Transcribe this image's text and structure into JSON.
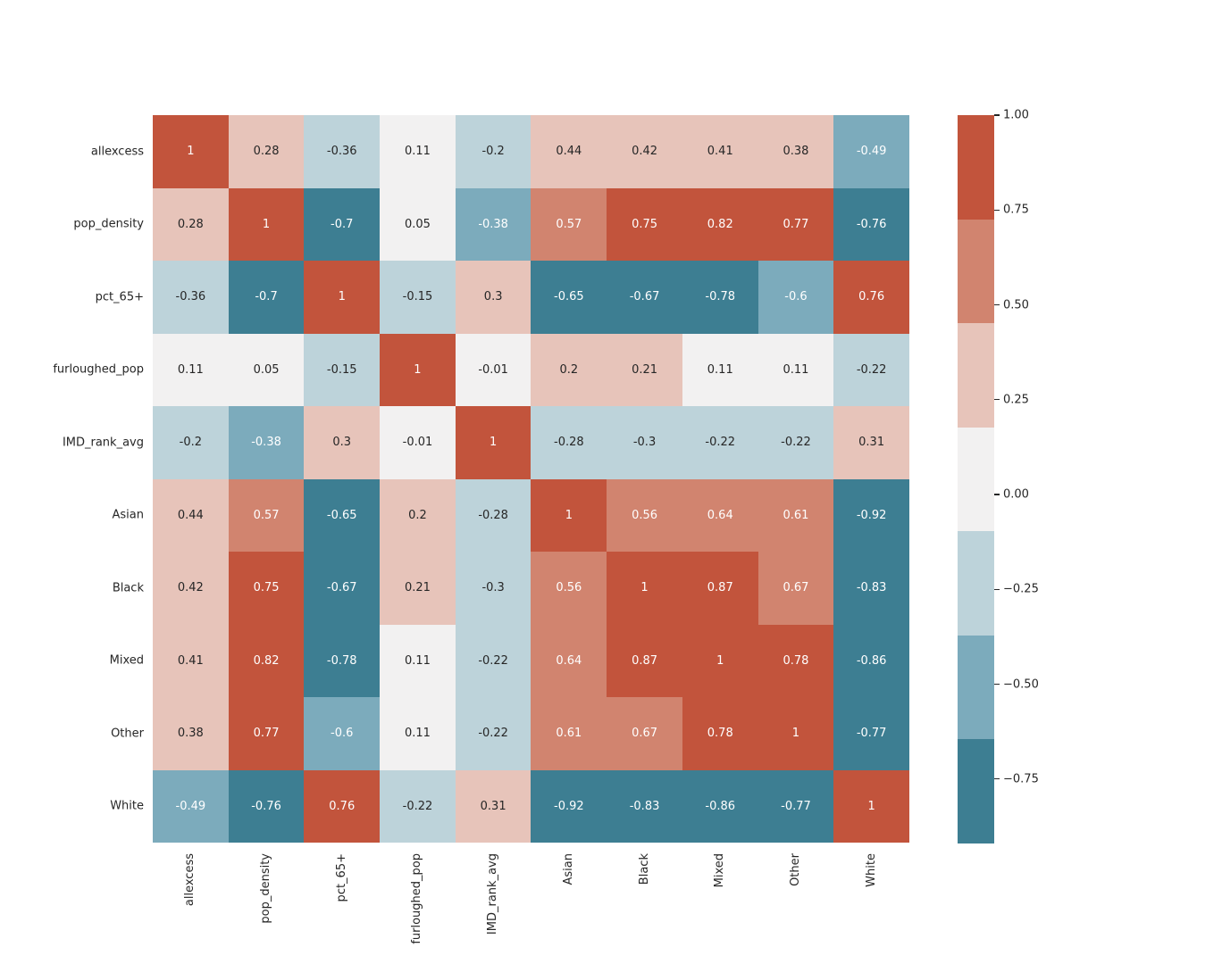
{
  "chart_data": {
    "type": "heatmap",
    "title": "",
    "xlabel": "",
    "ylabel": "",
    "categories": [
      "allexcess",
      "pop_density",
      "pct_65+",
      "furloughed_pop",
      "IMD_rank_avg",
      "Asian",
      "Black",
      "Mixed",
      "Other",
      "White"
    ],
    "matrix": [
      [
        1,
        0.28,
        -0.36,
        0.11,
        -0.2,
        0.44,
        0.42,
        0.41,
        0.38,
        -0.49
      ],
      [
        0.28,
        1,
        -0.7,
        0.05,
        -0.38,
        0.57,
        0.75,
        0.82,
        0.77,
        -0.76
      ],
      [
        -0.36,
        -0.7,
        1,
        -0.15,
        0.3,
        -0.65,
        -0.67,
        -0.78,
        -0.6,
        0.76
      ],
      [
        0.11,
        0.05,
        -0.15,
        1,
        -0.01,
        0.2,
        0.21,
        0.11,
        0.11,
        -0.22
      ],
      [
        -0.2,
        -0.38,
        0.3,
        -0.01,
        1,
        -0.28,
        -0.3,
        -0.22,
        -0.22,
        0.31
      ],
      [
        0.44,
        0.57,
        -0.65,
        0.2,
        -0.28,
        1,
        0.56,
        0.64,
        0.61,
        -0.92
      ],
      [
        0.42,
        0.75,
        -0.67,
        0.21,
        -0.3,
        0.56,
        1,
        0.87,
        0.67,
        -0.83
      ],
      [
        0.41,
        0.82,
        -0.78,
        0.11,
        -0.22,
        0.64,
        0.87,
        1,
        0.78,
        -0.86
      ],
      [
        0.38,
        0.77,
        -0.6,
        0.11,
        -0.22,
        0.61,
        0.67,
        0.78,
        1,
        -0.77
      ],
      [
        -0.49,
        -0.76,
        0.76,
        -0.22,
        0.31,
        -0.92,
        -0.83,
        -0.86,
        -0.77,
        1
      ]
    ],
    "vmin": -0.92,
    "vmax": 1.0,
    "grid": false,
    "legend_position": "right-colorbar",
    "palette_low_to_high": [
      "#3d7e92",
      "#7cabbc",
      "#bdd3da",
      "#f2f1f1",
      "#e7c4ba",
      "#d1846f",
      "#c2543c"
    ],
    "colorbar_ticks": [
      {
        "value": 1.0,
        "label": "1.00"
      },
      {
        "value": 0.75,
        "label": "0.75"
      },
      {
        "value": 0.5,
        "label": "0.50"
      },
      {
        "value": 0.25,
        "label": "0.25"
      },
      {
        "value": 0.0,
        "label": "0.00"
      },
      {
        "value": -0.25,
        "label": "−0.25"
      },
      {
        "value": -0.5,
        "label": "−0.50"
      },
      {
        "value": -0.75,
        "label": "−0.75"
      }
    ],
    "colors": {
      "background": "#ffffff",
      "annotation_dark": "#262626",
      "annotation_light": "#ffffff",
      "tick_label": "#262626"
    }
  }
}
